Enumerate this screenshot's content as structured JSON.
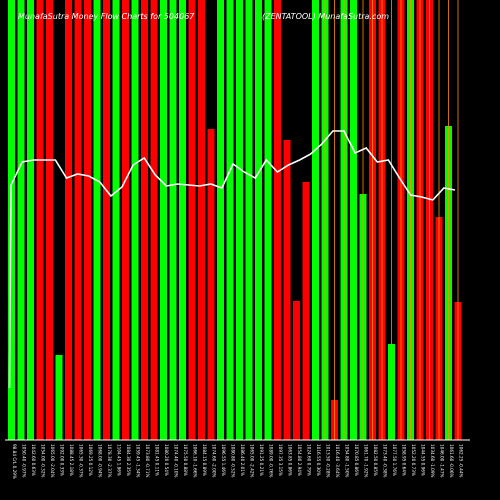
{
  "chart_data": {
    "type": "bar",
    "title_left": "MunafaSutra Money Flow Charts for 504067",
    "title_right": "(ZENTATOOL) MunafaSutra.com",
    "ylim": [
      0,
      440
    ],
    "colors": {
      "up": "#00ff00",
      "down": "#ff0000",
      "line": "#ffffff",
      "axis": "#ffffff",
      "wick": "#ff8c00",
      "background": "#000000"
    },
    "bars": [
      {
        "label": "98.84 CrL 0.29%",
        "value": 440,
        "color": "up"
      },
      {
        "label": "1050.40 -0.97%",
        "value": 440,
        "color": "up"
      },
      {
        "label": "1042.60 0.63%",
        "value": 440,
        "color": "up"
      },
      {
        "label": "1054.00 -0.32%",
        "value": 440,
        "color": "down"
      },
      {
        "label": "1065.00 -2.04%",
        "value": 440,
        "color": "down"
      },
      {
        "label": "1092.00 0.33%",
        "value": 85,
        "color": "up"
      },
      {
        "label": "1088.45 2.18%",
        "value": 440,
        "color": "down"
      },
      {
        "label": "1065.30 -0.37%",
        "value": 440,
        "color": "down"
      },
      {
        "label": "1069.25 0.12%",
        "value": 440,
        "color": "down"
      },
      {
        "label": "1068.00 -0.94%",
        "value": 440,
        "color": "up"
      },
      {
        "label": "1078.30 -2.37%",
        "value": 440,
        "color": "down"
      },
      {
        "label": "1104.45 1.86%",
        "value": 440,
        "color": "up"
      },
      {
        "label": "1084.30 2.35%",
        "value": 440,
        "color": "down"
      },
      {
        "label": "1059.45 -1.34%",
        "value": 440,
        "color": "up"
      },
      {
        "label": "1073.80 -0.71%",
        "value": 440,
        "color": "down"
      },
      {
        "label": "1081.45 0.11%",
        "value": 440,
        "color": "down"
      },
      {
        "label": "1080.20 0.54%",
        "value": 440,
        "color": "up"
      },
      {
        "label": "1074.40 -0.10%",
        "value": 440,
        "color": "up"
      },
      {
        "label": "1075.50 0.88%",
        "value": 440,
        "color": "up"
      },
      {
        "label": "1066.10 -1.66%",
        "value": 440,
        "color": "down"
      },
      {
        "label": "1084.15 0.89%",
        "value": 440,
        "color": "down"
      },
      {
        "label": "1074.60 -2.00%",
        "value": 311,
        "color": "down"
      },
      {
        "label": "1096.55 1.46%",
        "value": 440,
        "color": "up"
      },
      {
        "label": "1080.80 -0.52%",
        "value": 440,
        "color": "up"
      },
      {
        "label": "1086.40 2.01%",
        "value": 440,
        "color": "up"
      },
      {
        "label": "1065.00 -2.42%",
        "value": 440,
        "color": "up"
      },
      {
        "label": "1091.25 0.21%",
        "value": 440,
        "color": "up"
      },
      {
        "label": "1089.00 -0.76%",
        "value": 440,
        "color": "up"
      },
      {
        "label": "1097.35 3.15%",
        "value": 440,
        "color": "down"
      },
      {
        "label": "1063.85 0.86%",
        "value": 300,
        "color": "down"
      },
      {
        "label": "1054.80 2.94%",
        "value": 139,
        "color": "down"
      },
      {
        "label": "1024.60 0.79%",
        "value": 258,
        "color": "down"
      },
      {
        "label": "1016.55 0.30%",
        "value": 440,
        "color": "up"
      },
      {
        "label": "1013.50 -0.28%",
        "value": 440,
        "color": "up"
      },
      {
        "label": "1016.40 -3.64%",
        "value": 40,
        "color": "down"
      },
      {
        "label": "1054.80 -1.50%",
        "value": 440,
        "color": "up"
      },
      {
        "label": "1070.85 0.86%",
        "value": 440,
        "color": "up"
      },
      {
        "label": "1061.70 -1.92%",
        "value": 246,
        "color": "up"
      },
      {
        "label": "1082.50 0.85%",
        "value": 440,
        "color": "down"
      },
      {
        "label": "1073.40 -0.38%",
        "value": 440,
        "color": "down"
      },
      {
        "label": "1077.50 1.76%",
        "value": 96,
        "color": "up"
      },
      {
        "label": "1058.95 0.64%",
        "value": 440,
        "color": "down"
      },
      {
        "label": "1052.20 0.73%",
        "value": 440,
        "color": "up"
      },
      {
        "label": "1044.55 0.96%",
        "value": 440,
        "color": "down"
      },
      {
        "label": "1034.60 -1.09%",
        "value": 440,
        "color": "down"
      },
      {
        "label": "1046.00 -1.47%",
        "value": 223,
        "color": "down"
      },
      {
        "label": "1061.60 -0.06%",
        "value": 314,
        "color": "up"
      },
      {
        "label": "1062.25 -0.44%",
        "value": 138,
        "color": "down"
      }
    ],
    "wick_indices": [
      33,
      34,
      35,
      36,
      37,
      38,
      39,
      40,
      41,
      42,
      43,
      44,
      45,
      46,
      47
    ],
    "line": [
      255,
      278,
      280,
      280,
      280,
      262,
      266,
      264,
      258,
      244,
      253,
      275,
      282,
      265,
      254,
      256,
      255,
      254,
      256,
      252,
      276,
      268,
      262,
      280,
      268,
      275,
      280,
      286,
      296,
      309,
      309,
      287,
      292,
      278,
      280,
      262,
      245,
      243,
      240,
      252,
      250
    ],
    "line_x_start_index": 1,
    "line_first_point": 252
  }
}
